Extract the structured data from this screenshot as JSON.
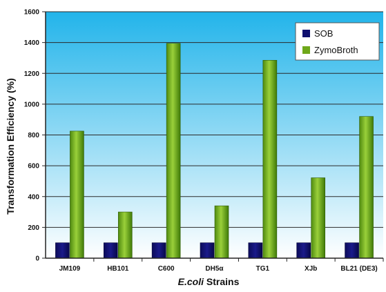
{
  "chart_data": {
    "type": "bar",
    "categories": [
      "JM109",
      "HB101",
      "C600",
      "DH5α",
      "TG1",
      "XJb",
      "BL21 (DE3)"
    ],
    "series": [
      {
        "name": "SOB",
        "values": [
          100,
          100,
          100,
          100,
          100,
          100,
          100
        ],
        "color": "#101070"
      },
      {
        "name": "ZymoBroth",
        "values": [
          825,
          300,
          1395,
          340,
          1285,
          522,
          920
        ],
        "color": "#6fa81a"
      }
    ],
    "xlabel_italic": "E.coli",
    "xlabel_rest": " Strains",
    "ylabel": "Transformation Efficiency (%)",
    "ylim": [
      0,
      1600
    ],
    "yticks": [
      0,
      200,
      400,
      600,
      800,
      1000,
      1200,
      1400,
      1600
    ],
    "grid": true,
    "legend_position": "top-right",
    "plot_background": {
      "top": "#22b4ea",
      "bottom": "#ffffff"
    }
  }
}
